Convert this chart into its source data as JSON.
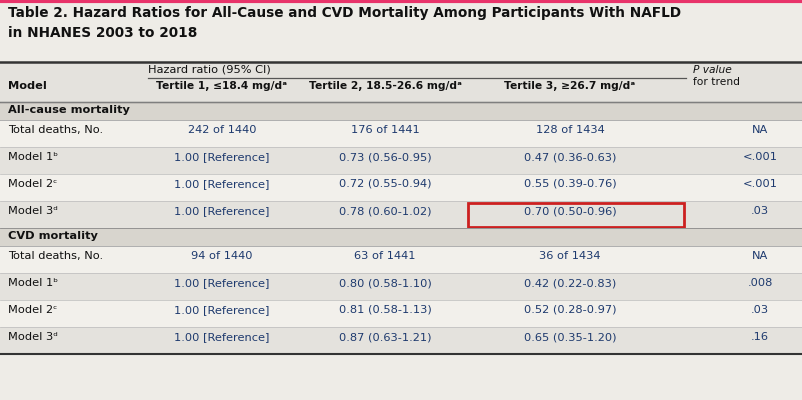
{
  "title_line1": "Table 2. Hazard Ratios for All-Cause and CVD Mortality Among Participants With NAFLD",
  "title_line2": "in NHANES 2003 to 2018",
  "header_sub": "Hazard ratio (95% CI)",
  "col0_header": "Model",
  "col1_header": "Tertile 1, ≤18.4 mg/dᵃ",
  "col2_header": "Tertile 2, 18.5-26.6 mg/dᵃ",
  "col3_header": "Tertile 3, ≥26.7 mg/dᵃ",
  "col4_header_line1": "P value",
  "col4_header_line2": "for trend",
  "section1": "All-cause mortality",
  "section2": "CVD mortality",
  "rows": [
    [
      "Total deaths, No.",
      "242 of 1440",
      "176 of 1441",
      "128 of 1434",
      "NA",
      false
    ],
    [
      "Model 1ᵇ",
      "1.00 [Reference]",
      "0.73 (0.56-0.95)",
      "0.47 (0.36-0.63)",
      "<.001",
      false
    ],
    [
      "Model 2ᶜ",
      "1.00 [Reference]",
      "0.72 (0.55-0.94)",
      "0.55 (0.39-0.76)",
      "<.001",
      false
    ],
    [
      "Model 3ᵈ",
      "1.00 [Reference]",
      "0.78 (0.60-1.02)",
      "0.70 (0.50-0.96)",
      ".03",
      true
    ],
    [
      "Total deaths, No.",
      "94 of 1440",
      "63 of 1441",
      "36 of 1434",
      "NA",
      false
    ],
    [
      "Model 1ᵇ",
      "1.00 [Reference]",
      "0.80 (0.58-1.10)",
      "0.42 (0.22-0.83)",
      ".008",
      false
    ],
    [
      "Model 2ᶜ",
      "1.00 [Reference]",
      "0.81 (0.58-1.13)",
      "0.52 (0.28-0.97)",
      ".03",
      false
    ],
    [
      "Model 3ᵈ",
      "1.00 [Reference]",
      "0.87 (0.63-1.21)",
      "0.65 (0.35-1.20)",
      ".16",
      false
    ]
  ],
  "bg_color": "#eeece7",
  "title_bg": "#eeece7",
  "table_bg_light": "#f2f0eb",
  "table_bg_dark": "#e4e2dd",
  "section_bg": "#d8d5ce",
  "header_bg": "#e4e2dd",
  "body_text": "#111111",
  "blue_text": "#1e3a6e",
  "highlight_color": "#cc2020",
  "top_border_color": "#e8336a",
  "title_fontsize": 9.8,
  "header_fontsize": 8.2,
  "body_fontsize": 8.2
}
